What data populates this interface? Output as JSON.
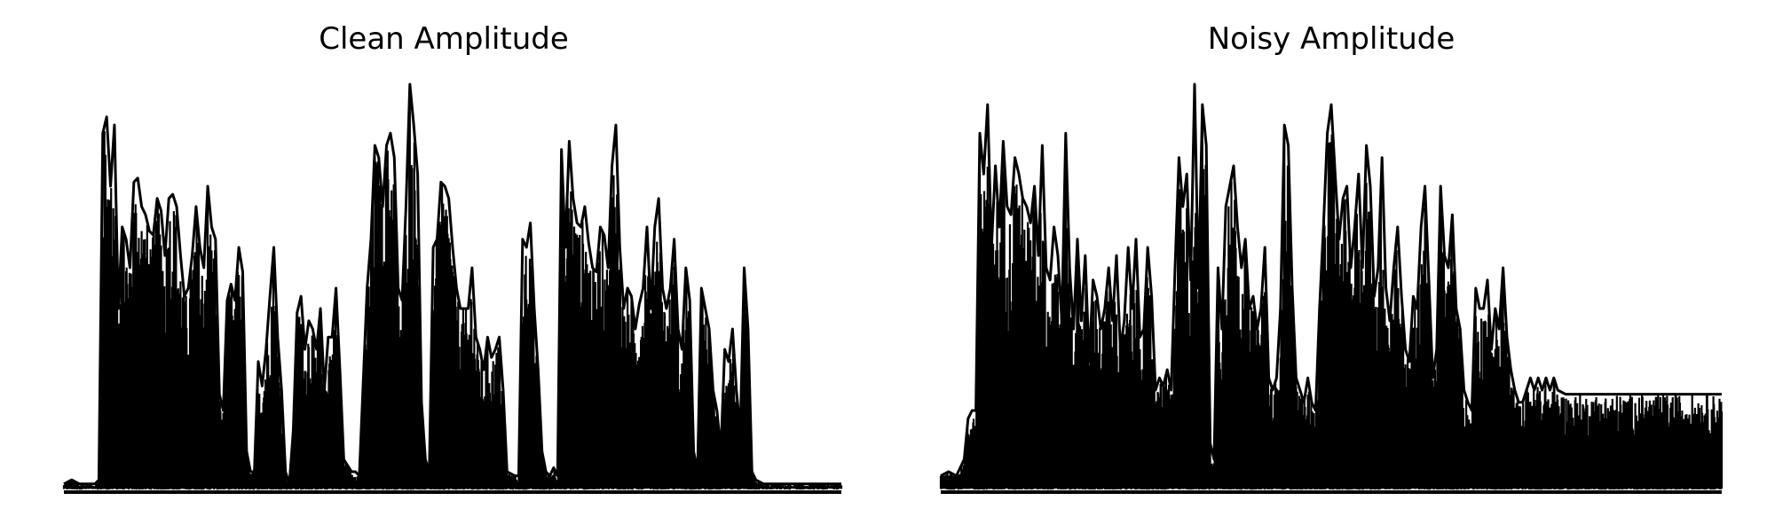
{
  "chart_data": [
    {
      "type": "line",
      "title": "Clean Amplitude",
      "xlabel": "",
      "ylabel": "",
      "axes_visible": false,
      "grid": false,
      "line_color": "#000000",
      "ylim": [
        0,
        1.0
      ],
      "envelope": [
        [
          0.0,
          0.02
        ],
        [
          0.01,
          0.03
        ],
        [
          0.02,
          0.02
        ],
        [
          0.03,
          0.02
        ],
        [
          0.04,
          0.02
        ],
        [
          0.045,
          0.03
        ],
        [
          0.05,
          0.88
        ],
        [
          0.055,
          0.92
        ],
        [
          0.06,
          0.75
        ],
        [
          0.065,
          0.9
        ],
        [
          0.07,
          0.45
        ],
        [
          0.075,
          0.65
        ],
        [
          0.08,
          0.62
        ],
        [
          0.085,
          0.55
        ],
        [
          0.09,
          0.76
        ],
        [
          0.095,
          0.77
        ],
        [
          0.1,
          0.7
        ],
        [
          0.105,
          0.68
        ],
        [
          0.11,
          0.64
        ],
        [
          0.115,
          0.63
        ],
        [
          0.12,
          0.72
        ],
        [
          0.125,
          0.69
        ],
        [
          0.13,
          0.58
        ],
        [
          0.135,
          0.72
        ],
        [
          0.14,
          0.73
        ],
        [
          0.145,
          0.7
        ],
        [
          0.15,
          0.58
        ],
        [
          0.155,
          0.48
        ],
        [
          0.16,
          0.5
        ],
        [
          0.165,
          0.58
        ],
        [
          0.17,
          0.7
        ],
        [
          0.175,
          0.6
        ],
        [
          0.18,
          0.55
        ],
        [
          0.185,
          0.75
        ],
        [
          0.19,
          0.65
        ],
        [
          0.195,
          0.62
        ],
        [
          0.2,
          0.24
        ],
        [
          0.205,
          0.2
        ],
        [
          0.21,
          0.47
        ],
        [
          0.215,
          0.51
        ],
        [
          0.22,
          0.47
        ],
        [
          0.225,
          0.6
        ],
        [
          0.23,
          0.54
        ],
        [
          0.235,
          0.1
        ],
        [
          0.24,
          0.05
        ],
        [
          0.245,
          0.05
        ],
        [
          0.25,
          0.32
        ],
        [
          0.255,
          0.26
        ],
        [
          0.26,
          0.35
        ],
        [
          0.265,
          0.48
        ],
        [
          0.27,
          0.6
        ],
        [
          0.275,
          0.38
        ],
        [
          0.28,
          0.25
        ],
        [
          0.285,
          0.05
        ],
        [
          0.29,
          0.02
        ],
        [
          0.295,
          0.15
        ],
        [
          0.3,
          0.44
        ],
        [
          0.305,
          0.48
        ],
        [
          0.31,
          0.35
        ],
        [
          0.315,
          0.42
        ],
        [
          0.32,
          0.4
        ],
        [
          0.325,
          0.35
        ],
        [
          0.33,
          0.45
        ],
        [
          0.335,
          0.25
        ],
        [
          0.34,
          0.38
        ],
        [
          0.345,
          0.38
        ],
        [
          0.35,
          0.5
        ],
        [
          0.355,
          0.3
        ],
        [
          0.36,
          0.08
        ],
        [
          0.37,
          0.05
        ],
        [
          0.375,
          0.05
        ],
        [
          0.38,
          0.04
        ],
        [
          0.39,
          0.5
        ],
        [
          0.395,
          0.62
        ],
        [
          0.4,
          0.85
        ],
        [
          0.405,
          0.82
        ],
        [
          0.41,
          0.7
        ],
        [
          0.415,
          0.85
        ],
        [
          0.42,
          0.88
        ],
        [
          0.425,
          0.82
        ],
        [
          0.43,
          0.5
        ],
        [
          0.435,
          0.47
        ],
        [
          0.44,
          0.7
        ],
        [
          0.445,
          1.0
        ],
        [
          0.45,
          0.9
        ],
        [
          0.455,
          0.78
        ],
        [
          0.46,
          0.22
        ],
        [
          0.465,
          0.08
        ],
        [
          0.47,
          0.05
        ],
        [
          0.475,
          0.6
        ],
        [
          0.48,
          0.62
        ],
        [
          0.485,
          0.76
        ],
        [
          0.49,
          0.75
        ],
        [
          0.495,
          0.72
        ],
        [
          0.5,
          0.6
        ],
        [
          0.505,
          0.5
        ],
        [
          0.51,
          0.45
        ],
        [
          0.515,
          0.45
        ],
        [
          0.52,
          0.45
        ],
        [
          0.525,
          0.55
        ],
        [
          0.53,
          0.38
        ],
        [
          0.535,
          0.35
        ],
        [
          0.54,
          0.3
        ],
        [
          0.545,
          0.38
        ],
        [
          0.55,
          0.33
        ],
        [
          0.555,
          0.35
        ],
        [
          0.56,
          0.38
        ],
        [
          0.565,
          0.25
        ],
        [
          0.57,
          0.05
        ],
        [
          0.58,
          0.04
        ],
        [
          0.585,
          0.04
        ],
        [
          0.59,
          0.62
        ],
        [
          0.595,
          0.6
        ],
        [
          0.6,
          0.66
        ],
        [
          0.605,
          0.45
        ],
        [
          0.61,
          0.3
        ],
        [
          0.615,
          0.1
        ],
        [
          0.62,
          0.05
        ],
        [
          0.625,
          0.04
        ],
        [
          0.63,
          0.06
        ],
        [
          0.635,
          0.04
        ],
        [
          0.64,
          0.84
        ],
        [
          0.645,
          0.6
        ],
        [
          0.65,
          0.86
        ],
        [
          0.655,
          0.72
        ],
        [
          0.66,
          0.66
        ],
        [
          0.665,
          0.65
        ],
        [
          0.67,
          0.7
        ],
        [
          0.675,
          0.61
        ],
        [
          0.68,
          0.55
        ],
        [
          0.685,
          0.54
        ],
        [
          0.69,
          0.65
        ],
        [
          0.695,
          0.63
        ],
        [
          0.7,
          0.55
        ],
        [
          0.705,
          0.8
        ],
        [
          0.71,
          0.9
        ],
        [
          0.715,
          0.6
        ],
        [
          0.72,
          0.45
        ],
        [
          0.725,
          0.5
        ],
        [
          0.73,
          0.48
        ],
        [
          0.735,
          0.4
        ],
        [
          0.74,
          0.46
        ],
        [
          0.745,
          0.5
        ],
        [
          0.75,
          0.65
        ],
        [
          0.755,
          0.45
        ],
        [
          0.76,
          0.65
        ],
        [
          0.765,
          0.72
        ],
        [
          0.77,
          0.5
        ],
        [
          0.775,
          0.45
        ],
        [
          0.78,
          0.5
        ],
        [
          0.785,
          0.62
        ],
        [
          0.79,
          0.4
        ],
        [
          0.795,
          0.35
        ],
        [
          0.8,
          0.55
        ],
        [
          0.805,
          0.47
        ],
        [
          0.81,
          0.1
        ],
        [
          0.815,
          0.05
        ],
        [
          0.82,
          0.5
        ],
        [
          0.825,
          0.45
        ],
        [
          0.83,
          0.4
        ],
        [
          0.835,
          0.25
        ],
        [
          0.84,
          0.2
        ],
        [
          0.845,
          0.1
        ],
        [
          0.85,
          0.35
        ],
        [
          0.855,
          0.32
        ],
        [
          0.86,
          0.4
        ],
        [
          0.865,
          0.25
        ],
        [
          0.87,
          0.15
        ],
        [
          0.875,
          0.55
        ],
        [
          0.88,
          0.4
        ],
        [
          0.885,
          0.05
        ],
        [
          0.89,
          0.03
        ],
        [
          0.9,
          0.02
        ],
        [
          0.95,
          0.02
        ],
        [
          1.0,
          0.02
        ]
      ]
    },
    {
      "type": "line",
      "title": "Noisy Amplitude",
      "xlabel": "",
      "ylabel": "",
      "axes_visible": false,
      "grid": false,
      "line_color": "#000000",
      "ylim": [
        0,
        1.0
      ],
      "envelope": [
        [
          0.0,
          0.04
        ],
        [
          0.01,
          0.05
        ],
        [
          0.02,
          0.04
        ],
        [
          0.03,
          0.08
        ],
        [
          0.035,
          0.18
        ],
        [
          0.04,
          0.2
        ],
        [
          0.045,
          0.2
        ],
        [
          0.05,
          0.88
        ],
        [
          0.055,
          0.78
        ],
        [
          0.06,
          0.95
        ],
        [
          0.065,
          0.6
        ],
        [
          0.07,
          0.8
        ],
        [
          0.075,
          0.65
        ],
        [
          0.08,
          0.86
        ],
        [
          0.085,
          0.7
        ],
        [
          0.09,
          0.68
        ],
        [
          0.095,
          0.82
        ],
        [
          0.1,
          0.78
        ],
        [
          0.105,
          0.72
        ],
        [
          0.11,
          0.7
        ],
        [
          0.115,
          0.66
        ],
        [
          0.12,
          0.75
        ],
        [
          0.125,
          0.58
        ],
        [
          0.13,
          0.85
        ],
        [
          0.135,
          0.55
        ],
        [
          0.14,
          0.52
        ],
        [
          0.145,
          0.65
        ],
        [
          0.15,
          0.58
        ],
        [
          0.155,
          0.42
        ],
        [
          0.16,
          0.88
        ],
        [
          0.165,
          0.55
        ],
        [
          0.17,
          0.4
        ],
        [
          0.175,
          0.62
        ],
        [
          0.18,
          0.42
        ],
        [
          0.185,
          0.58
        ],
        [
          0.19,
          0.32
        ],
        [
          0.195,
          0.52
        ],
        [
          0.2,
          0.48
        ],
        [
          0.205,
          0.4
        ],
        [
          0.21,
          0.45
        ],
        [
          0.215,
          0.55
        ],
        [
          0.22,
          0.42
        ],
        [
          0.225,
          0.58
        ],
        [
          0.23,
          0.35
        ],
        [
          0.235,
          0.42
        ],
        [
          0.24,
          0.6
        ],
        [
          0.245,
          0.45
        ],
        [
          0.25,
          0.62
        ],
        [
          0.255,
          0.38
        ],
        [
          0.26,
          0.4
        ],
        [
          0.265,
          0.6
        ],
        [
          0.27,
          0.48
        ],
        [
          0.275,
          0.25
        ],
        [
          0.28,
          0.28
        ],
        [
          0.285,
          0.26
        ],
        [
          0.29,
          0.3
        ],
        [
          0.295,
          0.25
        ],
        [
          0.3,
          0.55
        ],
        [
          0.305,
          0.82
        ],
        [
          0.31,
          0.7
        ],
        [
          0.315,
          0.78
        ],
        [
          0.32,
          0.52
        ],
        [
          0.325,
          1.0
        ],
        [
          0.33,
          0.5
        ],
        [
          0.335,
          0.95
        ],
        [
          0.34,
          0.85
        ],
        [
          0.345,
          0.12
        ],
        [
          0.35,
          0.08
        ],
        [
          0.355,
          0.55
        ],
        [
          0.36,
          0.4
        ],
        [
          0.365,
          0.7
        ],
        [
          0.37,
          0.75
        ],
        [
          0.375,
          0.8
        ],
        [
          0.38,
          0.65
        ],
        [
          0.385,
          0.55
        ],
        [
          0.39,
          0.62
        ],
        [
          0.395,
          0.45
        ],
        [
          0.4,
          0.48
        ],
        [
          0.405,
          0.4
        ],
        [
          0.41,
          0.45
        ],
        [
          0.415,
          0.6
        ],
        [
          0.42,
          0.28
        ],
        [
          0.425,
          0.25
        ],
        [
          0.43,
          0.28
        ],
        [
          0.435,
          0.45
        ],
        [
          0.44,
          0.9
        ],
        [
          0.445,
          0.85
        ],
        [
          0.45,
          0.5
        ],
        [
          0.455,
          0.28
        ],
        [
          0.46,
          0.25
        ],
        [
          0.465,
          0.22
        ],
        [
          0.47,
          0.28
        ],
        [
          0.475,
          0.22
        ],
        [
          0.48,
          0.2
        ],
        [
          0.485,
          0.45
        ],
        [
          0.49,
          0.65
        ],
        [
          0.495,
          0.88
        ],
        [
          0.5,
          0.95
        ],
        [
          0.505,
          0.78
        ],
        [
          0.51,
          0.62
        ],
        [
          0.515,
          0.72
        ],
        [
          0.52,
          0.75
        ],
        [
          0.525,
          0.55
        ],
        [
          0.53,
          0.65
        ],
        [
          0.535,
          0.78
        ],
        [
          0.54,
          0.55
        ],
        [
          0.545,
          0.85
        ],
        [
          0.55,
          0.75
        ],
        [
          0.555,
          0.48
        ],
        [
          0.56,
          0.55
        ],
        [
          0.565,
          0.82
        ],
        [
          0.57,
          0.5
        ],
        [
          0.575,
          0.42
        ],
        [
          0.58,
          0.55
        ],
        [
          0.585,
          0.65
        ],
        [
          0.59,
          0.48
        ],
        [
          0.595,
          0.35
        ],
        [
          0.6,
          0.32
        ],
        [
          0.605,
          0.48
        ],
        [
          0.61,
          0.45
        ],
        [
          0.615,
          0.65
        ],
        [
          0.62,
          0.75
        ],
        [
          0.625,
          0.52
        ],
        [
          0.63,
          0.28
        ],
        [
          0.635,
          0.35
        ],
        [
          0.64,
          0.75
        ],
        [
          0.645,
          0.58
        ],
        [
          0.65,
          0.55
        ],
        [
          0.655,
          0.68
        ],
        [
          0.66,
          0.45
        ],
        [
          0.665,
          0.4
        ],
        [
          0.67,
          0.25
        ],
        [
          0.675,
          0.22
        ],
        [
          0.68,
          0.2
        ],
        [
          0.685,
          0.5
        ],
        [
          0.69,
          0.45
        ],
        [
          0.695,
          0.45
        ],
        [
          0.7,
          0.52
        ],
        [
          0.705,
          0.35
        ],
        [
          0.71,
          0.45
        ],
        [
          0.715,
          0.4
        ],
        [
          0.72,
          0.55
        ],
        [
          0.725,
          0.38
        ],
        [
          0.73,
          0.3
        ],
        [
          0.735,
          0.25
        ],
        [
          0.74,
          0.22
        ],
        [
          0.745,
          0.22
        ],
        [
          0.75,
          0.25
        ],
        [
          0.755,
          0.28
        ],
        [
          0.76,
          0.25
        ],
        [
          0.765,
          0.28
        ],
        [
          0.77,
          0.25
        ],
        [
          0.775,
          0.28
        ],
        [
          0.78,
          0.25
        ],
        [
          0.785,
          0.28
        ],
        [
          0.79,
          0.25
        ],
        [
          0.8,
          0.24
        ],
        [
          1.0,
          0.24
        ]
      ],
      "noise_floor": 0.04
    }
  ]
}
